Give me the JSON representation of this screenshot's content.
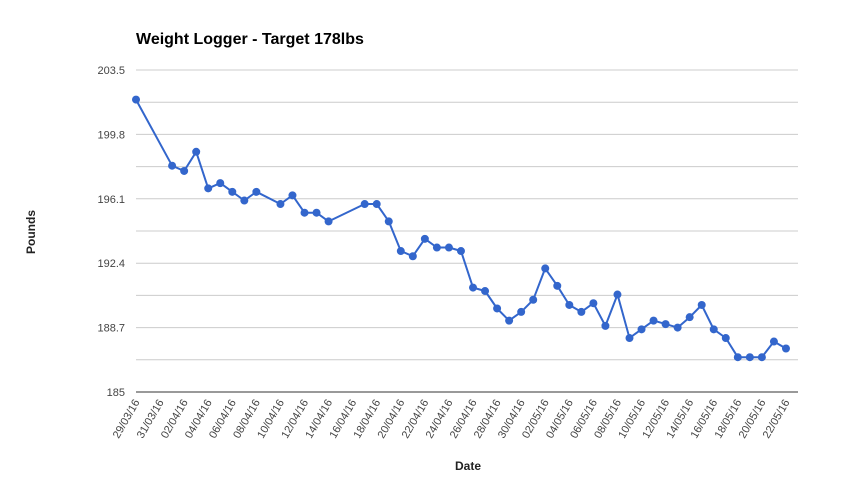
{
  "chart_data": {
    "type": "line",
    "title": "Weight Logger - Target 178lbs",
    "xlabel": "Date",
    "ylabel": "Pounds",
    "ylim": [
      185,
      203.5
    ],
    "y_ticks": [
      "185",
      "188.7",
      "192.4",
      "196.1",
      "199.8",
      "203.5"
    ],
    "grid": true,
    "legend": "none",
    "x_range": [
      "2016-03-29",
      "2016-05-23"
    ],
    "x_tick_labels": [
      "29/03/16",
      "31/03/16",
      "02/04/16",
      "04/04/16",
      "06/04/16",
      "08/04/16",
      "10/04/16",
      "12/04/16",
      "14/04/16",
      "16/04/16",
      "18/04/16",
      "20/04/16",
      "22/04/16",
      "24/04/16",
      "26/04/16",
      "28/04/16",
      "30/04/16",
      "02/05/16",
      "04/05/16",
      "06/05/16",
      "08/05/16",
      "10/05/16",
      "12/05/16",
      "14/05/16",
      "16/05/16",
      "18/05/16",
      "20/05/16",
      "22/05/16"
    ],
    "series": [
      {
        "color": "#3366cc",
        "points": [
          {
            "x": "2016-03-29",
            "y": 201.8
          },
          {
            "x": "2016-04-01",
            "y": 198.0
          },
          {
            "x": "2016-04-02",
            "y": 197.7
          },
          {
            "x": "2016-04-03",
            "y": 198.8
          },
          {
            "x": "2016-04-04",
            "y": 196.7
          },
          {
            "x": "2016-04-05",
            "y": 197.0
          },
          {
            "x": "2016-04-06",
            "y": 196.5
          },
          {
            "x": "2016-04-07",
            "y": 196.0
          },
          {
            "x": "2016-04-08",
            "y": 196.5
          },
          {
            "x": "2016-04-10",
            "y": 195.8
          },
          {
            "x": "2016-04-11",
            "y": 196.3
          },
          {
            "x": "2016-04-12",
            "y": 195.3
          },
          {
            "x": "2016-04-13",
            "y": 195.3
          },
          {
            "x": "2016-04-14",
            "y": 194.8
          },
          {
            "x": "2016-04-17",
            "y": 195.8
          },
          {
            "x": "2016-04-18",
            "y": 195.8
          },
          {
            "x": "2016-04-19",
            "y": 194.8
          },
          {
            "x": "2016-04-20",
            "y": 193.1
          },
          {
            "x": "2016-04-21",
            "y": 192.8
          },
          {
            "x": "2016-04-22",
            "y": 193.8
          },
          {
            "x": "2016-04-23",
            "y": 193.3
          },
          {
            "x": "2016-04-24",
            "y": 193.3
          },
          {
            "x": "2016-04-25",
            "y": 193.1
          },
          {
            "x": "2016-04-26",
            "y": 191.0
          },
          {
            "x": "2016-04-27",
            "y": 190.8
          },
          {
            "x": "2016-04-28",
            "y": 189.8
          },
          {
            "x": "2016-04-29",
            "y": 189.1
          },
          {
            "x": "2016-04-30",
            "y": 189.6
          },
          {
            "x": "2016-05-01",
            "y": 190.3
          },
          {
            "x": "2016-05-02",
            "y": 192.1
          },
          {
            "x": "2016-05-03",
            "y": 191.1
          },
          {
            "x": "2016-05-04",
            "y": 190.0
          },
          {
            "x": "2016-05-05",
            "y": 189.6
          },
          {
            "x": "2016-05-06",
            "y": 190.1
          },
          {
            "x": "2016-05-07",
            "y": 188.8
          },
          {
            "x": "2016-05-08",
            "y": 190.6
          },
          {
            "x": "2016-05-09",
            "y": 188.1
          },
          {
            "x": "2016-05-10",
            "y": 188.6
          },
          {
            "x": "2016-05-11",
            "y": 189.1
          },
          {
            "x": "2016-05-12",
            "y": 188.9
          },
          {
            "x": "2016-05-13",
            "y": 188.7
          },
          {
            "x": "2016-05-14",
            "y": 189.3
          },
          {
            "x": "2016-05-15",
            "y": 190.0
          },
          {
            "x": "2016-05-16",
            "y": 188.6
          },
          {
            "x": "2016-05-17",
            "y": 188.1
          },
          {
            "x": "2016-05-18",
            "y": 187.0
          },
          {
            "x": "2016-05-19",
            "y": 187.0
          },
          {
            "x": "2016-05-20",
            "y": 187.0
          },
          {
            "x": "2016-05-21",
            "y": 187.9
          },
          {
            "x": "2016-05-22",
            "y": 187.5
          }
        ]
      }
    ]
  }
}
